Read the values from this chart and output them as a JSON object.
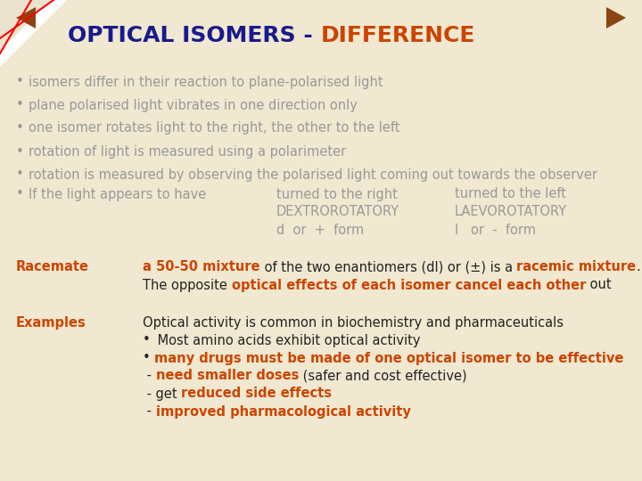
{
  "background_color": "#f0e8d0",
  "title_part1": "OPTICAL ISOMERS - ",
  "title_part2": "DIFFERENCE",
  "title_color1": "#1a1a8c",
  "title_color2": "#cc4400",
  "title_fontsize": 18,
  "bullet_fontsize": 10.5,
  "gray": "#999999",
  "dark": "#222222",
  "orange_red": "#cc4400",
  "nav_arrow_color": "#8b4513",
  "bullets": [
    "isomers differ in their reaction to plane-polarised light",
    "plane polarised light vibrates in one direction only",
    "one isomer rotates light to the right, the other to the left",
    "rotation of light is measured using a polarimeter",
    "rotation is measured by observing the polarised light coming out towards the observer"
  ],
  "if_label": "If the light appears to have",
  "col2_header": "turned to the right",
  "col2_sub1": "DEXTROROTATORY",
  "col2_sub2": "d  or  +  form",
  "col3_header": "turned to the left",
  "col3_sub1": "LAEVOROTATORY",
  "col3_sub2": "l   or  -  form",
  "racemate_label": "Racemate",
  "examples_label": "Examples"
}
